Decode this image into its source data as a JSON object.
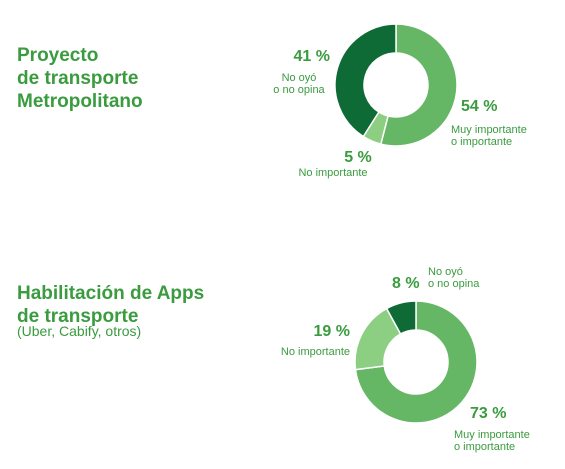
{
  "charts": [
    {
      "title_lines": [
        "Proyecto",
        "de transporte",
        "Metropolitano"
      ],
      "subtitle": ""
    },
    {
      "title_lines": [
        "Habilitación de Apps",
        "de transporte"
      ],
      "subtitle": "(Uber, Cabify, otros)"
    }
  ],
  "chart_data": [
    {
      "type": "pie",
      "title": "Proyecto de transporte Metropolitano",
      "slices": [
        {
          "label": "Muy importante o importante",
          "value": 54,
          "pct_label": "54 %",
          "label_lines": [
            "Muy importante",
            "o importante"
          ],
          "color": "#65b665"
        },
        {
          "label": "No importante",
          "value": 5,
          "pct_label": "5 %",
          "label_lines": [
            "No importante"
          ],
          "color": "#8ccf83"
        },
        {
          "label": "No oyó o no opina",
          "value": 41,
          "pct_label": "41 %",
          "label_lines": [
            "No oyó",
            "o no opina"
          ],
          "color": "#0f6b35"
        }
      ]
    },
    {
      "type": "pie",
      "title": "Habilitación de Apps de transporte (Uber, Cabify, otros)",
      "slices": [
        {
          "label": "Muy importante o importante",
          "value": 73,
          "pct_label": "73 %",
          "label_lines": [
            "Muy importante",
            "o importante"
          ],
          "color": "#65b665"
        },
        {
          "label": "No importante",
          "value": 19,
          "pct_label": "19 %",
          "label_lines": [
            "No importante"
          ],
          "color": "#8ccf83"
        },
        {
          "label": "No oyó o no opina",
          "value": 8,
          "pct_label": "8 %",
          "label_lines": [
            "No oyó",
            "o no opina"
          ],
          "color": "#0f6b35"
        }
      ]
    }
  ]
}
